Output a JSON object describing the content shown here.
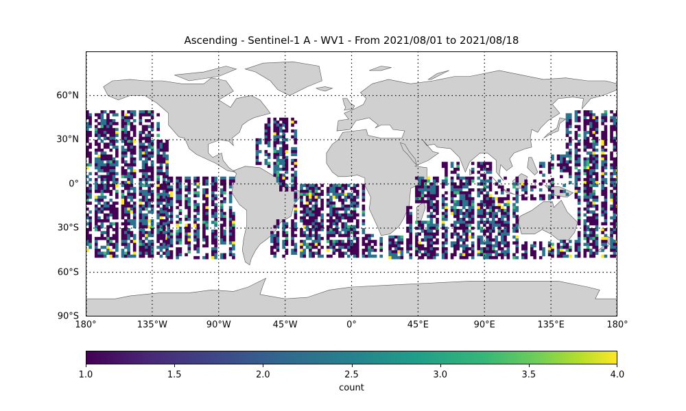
{
  "title": "Ascending - Sentinel-1 A - WV1 - From 2021/08/01 to 2021/08/18",
  "map": {
    "projection": "PlateCarree",
    "extent": {
      "lon": [
        -180,
        180
      ],
      "lat": [
        -90,
        90
      ]
    },
    "land_color": "#d0d0d0",
    "coast_color": "#505050",
    "grid": "dotted",
    "lat_labels": [
      "60°N",
      "30°N",
      "0°",
      "30°S",
      "60°S",
      "90°S"
    ],
    "lat_values": [
      60,
      30,
      0,
      -30,
      -60,
      -90
    ],
    "lon_labels": [
      "180°",
      "135°W",
      "90°W",
      "45°W",
      "0°",
      "45°E",
      "90°E",
      "135°E",
      "180°"
    ],
    "lon_values": [
      -180,
      -135,
      -90,
      -45,
      0,
      45,
      90,
      135,
      180
    ]
  },
  "colorbar": {
    "label": "count",
    "range": [
      1.0,
      4.0
    ],
    "colormap": "viridis",
    "colors": [
      "#440154",
      "#3b528b",
      "#21918c",
      "#5ec962",
      "#fde725"
    ],
    "tick_labels": [
      "1.0",
      "1.5",
      "2.0",
      "2.5",
      "3.0",
      "3.5",
      "4.0"
    ],
    "tick_values": [
      1.0,
      1.5,
      2.0,
      2.5,
      3.0,
      3.5,
      4.0
    ]
  },
  "chart_data": {
    "type": "heatmap",
    "title": "Ascending - Sentinel-1 A - WV1 - From 2021/08/01 to 2021/08/18",
    "value_label": "count",
    "value_range": [
      1,
      4
    ],
    "cell_size_deg": 2,
    "lat_band": [
      -50,
      50
    ],
    "description_of_values": "Gridded count of WV1 acquisitions; mostly 1 (purple) and 2 (teal), occasional 3 (green) and 4 (yellow)",
    "coverage_regions": [
      {
        "region": "North/Central Pacific (east)",
        "lon": [
          -180,
          -125
        ],
        "lat": [
          -50,
          50
        ]
      },
      {
        "region": "Eastern Pacific",
        "lon": [
          -125,
          -80
        ],
        "lat": [
          -50,
          5
        ]
      },
      {
        "region": "North Atlantic",
        "lon": [
          -65,
          -35
        ],
        "lat": [
          -10,
          45
        ]
      },
      {
        "region": "South Atlantic",
        "lon": [
          -55,
          20
        ],
        "lat": [
          -50,
          0
        ]
      },
      {
        "region": "Indian Ocean",
        "lon": [
          25,
          135
        ],
        "lat": [
          -50,
          15
        ]
      },
      {
        "region": "Western Pacific",
        "lon": [
          135,
          180
        ],
        "lat": [
          -50,
          50
        ]
      }
    ]
  }
}
